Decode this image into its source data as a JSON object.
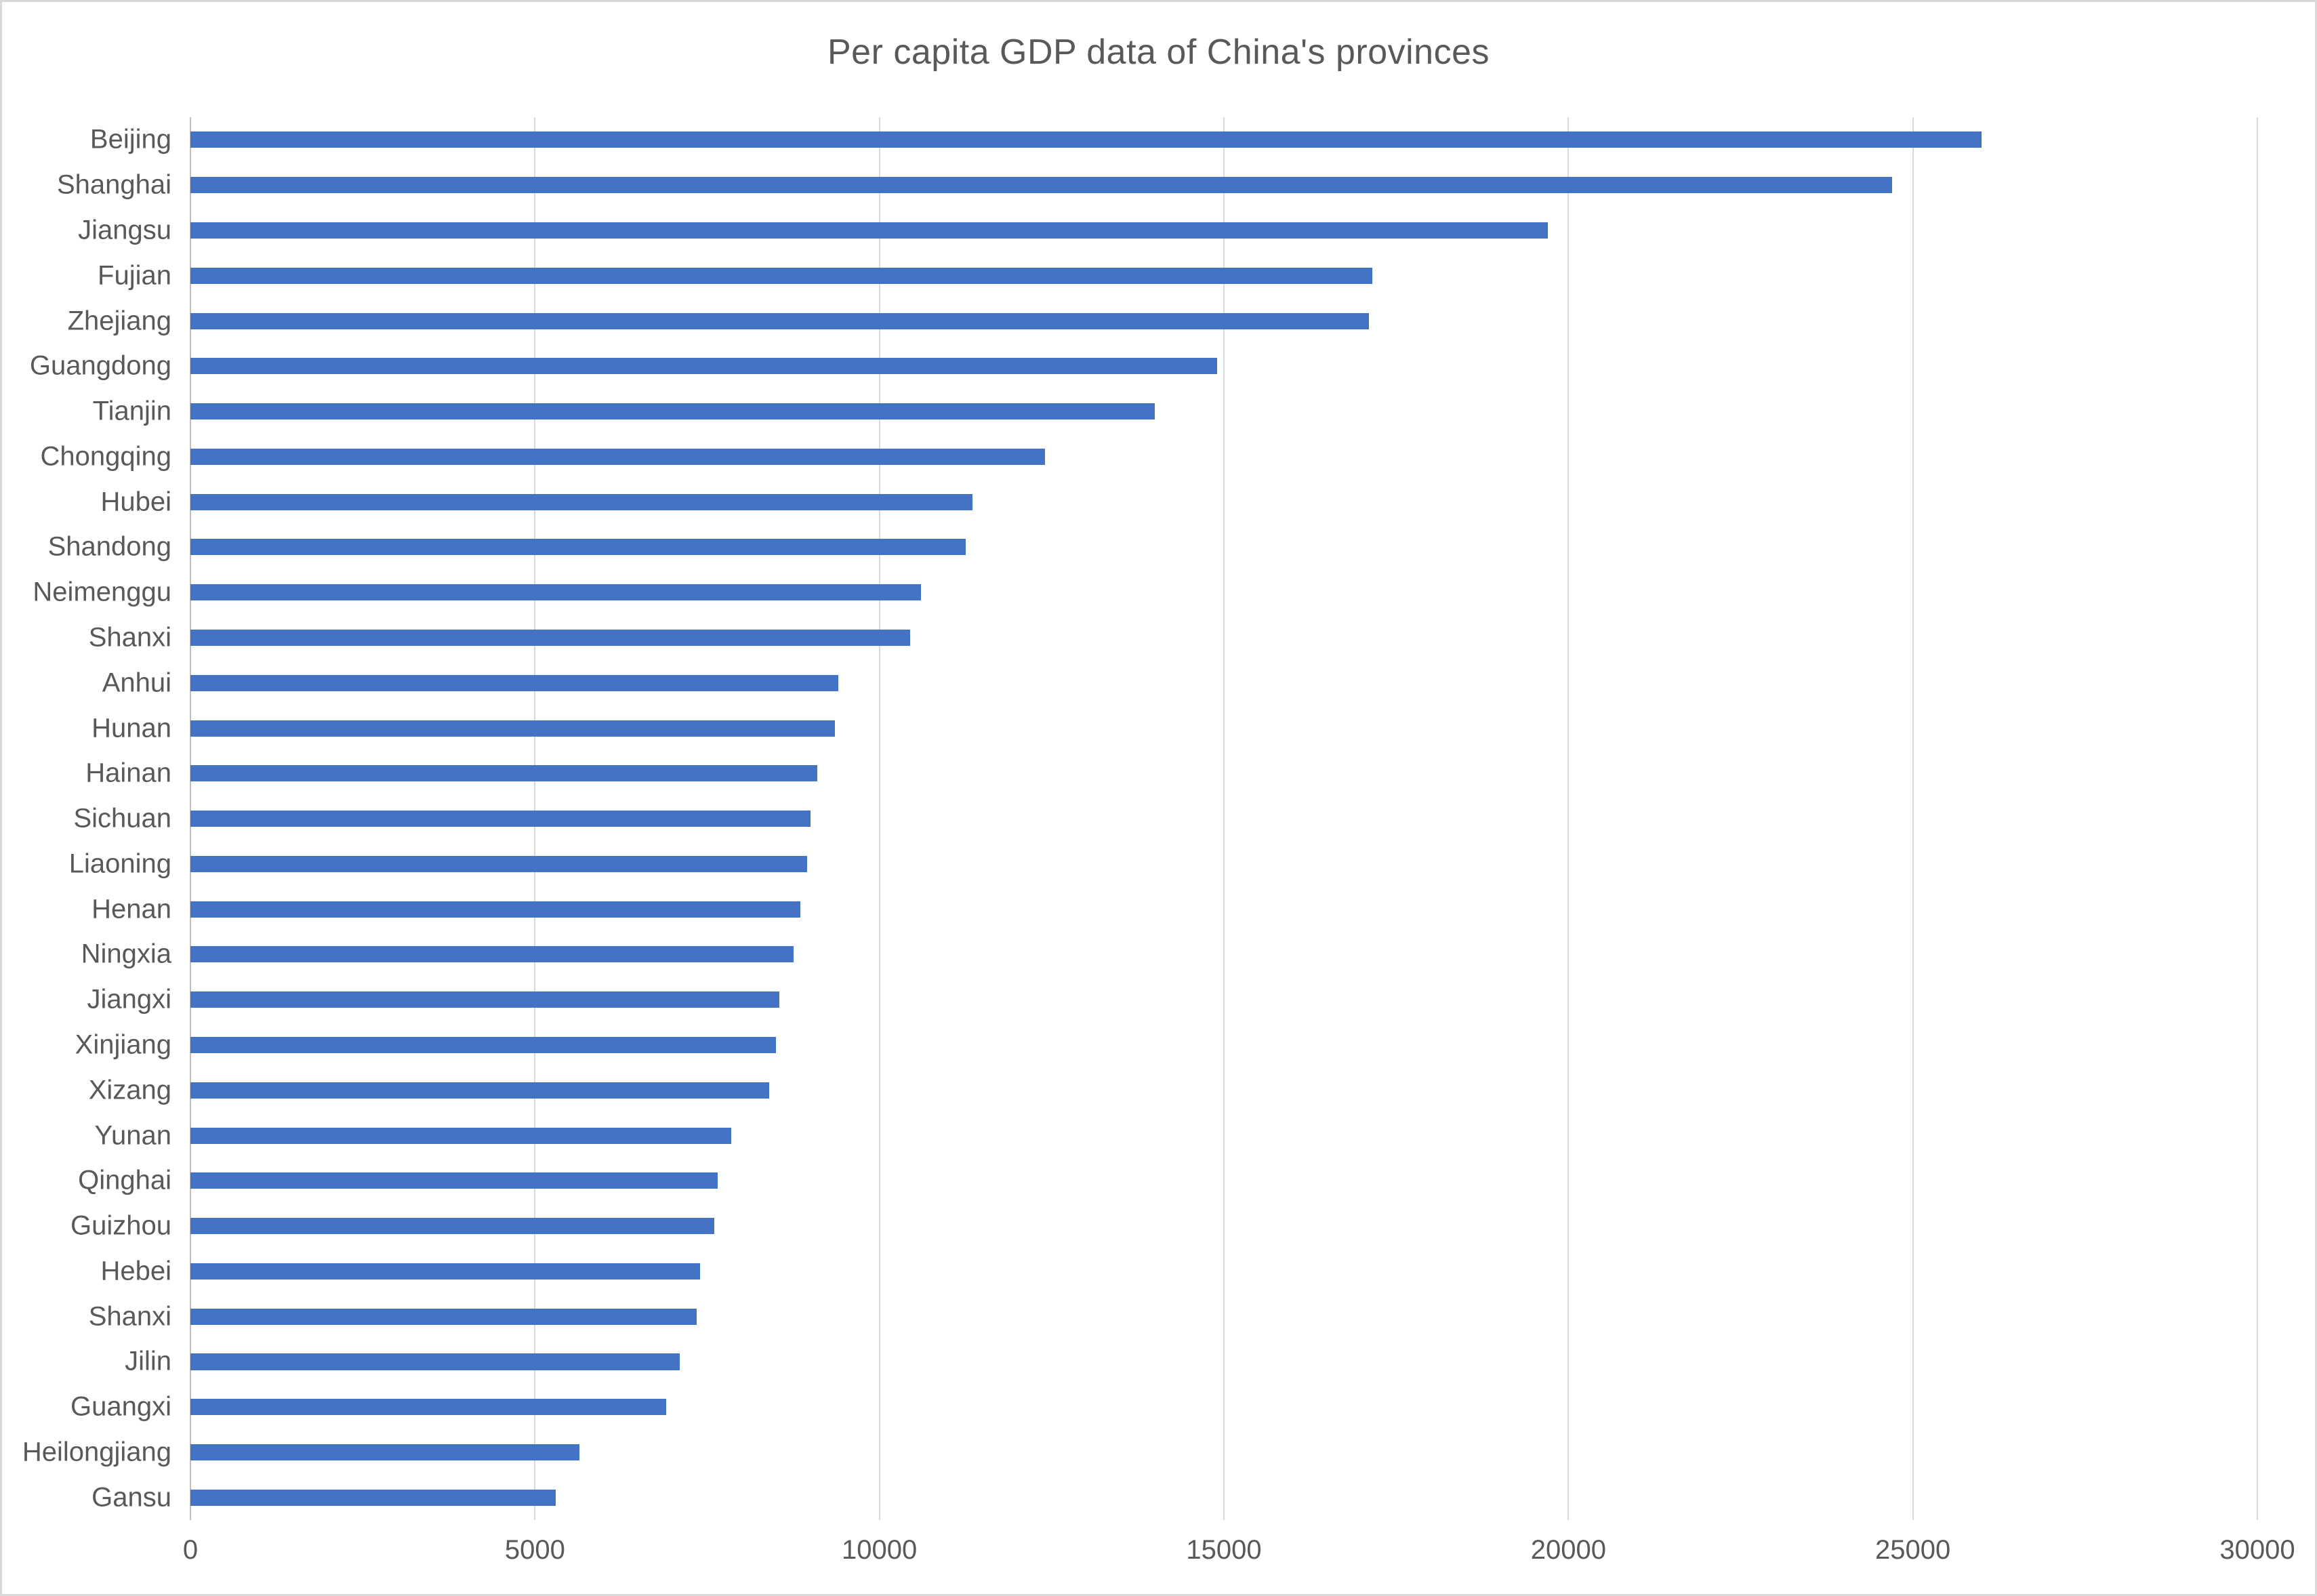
{
  "title": "Per capita GDP data of China's provinces",
  "colors": {
    "bar": "#4472c4",
    "text": "#595959",
    "gridline": "#d9d9d9",
    "axis_line": "#bfbfbf",
    "border": "#d9d9d9",
    "background": "#ffffff"
  },
  "chart_data": {
    "type": "bar",
    "orientation": "horizontal",
    "title": "Per capita GDP data of China's provinces",
    "xlabel": "",
    "ylabel": "",
    "xlim": [
      0,
      30000
    ],
    "x_ticks": [
      0,
      5000,
      10000,
      15000,
      20000,
      25000,
      30000
    ],
    "grid": true,
    "legend": false,
    "categories": [
      "Beijing",
      "Shanghai",
      "Jiangsu",
      "Fujian",
      "Zhejiang",
      "Guangdong",
      "Tianjin",
      "Chongqing",
      "Hubei",
      "Shandong",
      "Neimenggu",
      "Shanxi",
      "Anhui",
      "Hunan",
      "Hainan",
      "Sichuan",
      "Liaoning",
      "Henan",
      "Ningxia",
      "Jiangxi",
      "Xinjiang",
      "Xizang",
      "Yunan",
      "Qinghai",
      "Guizhou",
      "Hebei",
      "Shanxi",
      "Jilin",
      "Guangxi",
      "Heilongjiang",
      "Gansu"
    ],
    "values": [
      26000,
      24700,
      19700,
      17150,
      17100,
      14900,
      14000,
      12400,
      11350,
      11250,
      10600,
      10450,
      9400,
      9350,
      9100,
      9000,
      8950,
      8850,
      8750,
      8550,
      8500,
      8400,
      7850,
      7650,
      7600,
      7400,
      7350,
      7100,
      6900,
      5650,
      5300
    ]
  }
}
